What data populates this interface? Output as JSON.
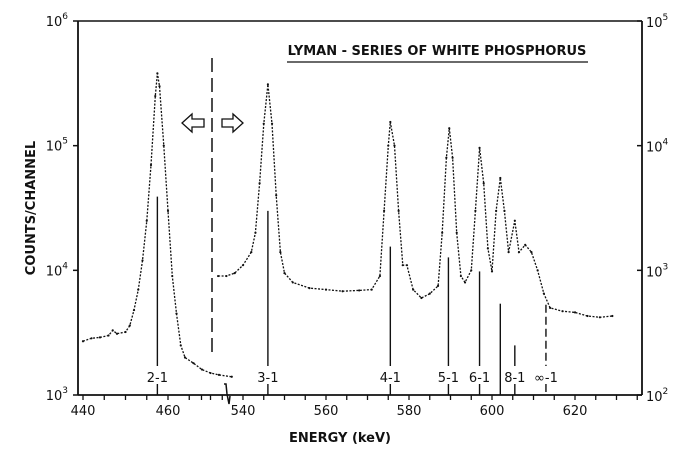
{
  "chart_data": {
    "type": "line",
    "title": "LYMAN - SERIES OF WHITE PHOSPHORUS",
    "xlabel": "ENERGY (keV)",
    "ylabel": "COUNTS/CHANNEL",
    "y_scale": "log",
    "ylim_left": [
      1000,
      1000000
    ],
    "ylim_right": [
      100,
      100000
    ],
    "y_ticks_left": [
      {
        "base": "10",
        "exp": "3"
      },
      {
        "base": "10",
        "exp": "4"
      },
      {
        "base": "10",
        "exp": "5"
      },
      {
        "base": "10",
        "exp": "6"
      }
    ],
    "y_ticks_right": [
      {
        "base": "10",
        "exp": "2"
      },
      {
        "base": "10",
        "exp": "3"
      },
      {
        "base": "10",
        "exp": "4"
      },
      {
        "base": "10",
        "exp": "5"
      }
    ],
    "x_axis_broken": true,
    "x_segments": [
      {
        "range": [
          438,
          476
        ],
        "tick_labels": [
          "440",
          "460"
        ]
      },
      {
        "range": [
          530,
          638
        ],
        "tick_labels": [
          "540",
          "560",
          "580",
          "600",
          "620"
        ]
      }
    ],
    "grid": false,
    "color": "#111111",
    "series": [
      {
        "segment": 0,
        "points": [
          [
            440,
            2700
          ],
          [
            442,
            2850
          ],
          [
            444,
            2900
          ],
          [
            446,
            3000
          ],
          [
            447,
            3300
          ],
          [
            448,
            3100
          ],
          [
            450,
            3200
          ],
          [
            451,
            3600
          ],
          [
            452,
            4800
          ],
          [
            453,
            7000
          ],
          [
            454,
            12000
          ],
          [
            455,
            25000
          ],
          [
            456,
            70000
          ],
          [
            457,
            250000
          ],
          [
            457.5,
            380000
          ],
          [
            458,
            300000
          ],
          [
            459,
            100000
          ],
          [
            460,
            30000
          ],
          [
            461,
            9000
          ],
          [
            462,
            4500
          ],
          [
            463,
            2500
          ],
          [
            464,
            2000
          ],
          [
            466,
            1800
          ],
          [
            468,
            1600
          ],
          [
            470,
            1500
          ],
          [
            472,
            1450
          ],
          [
            475,
            1400
          ]
        ]
      },
      {
        "segment": 1,
        "points": [
          [
            534,
            9000
          ],
          [
            536,
            9000
          ],
          [
            538,
            9500
          ],
          [
            540,
            11000
          ],
          [
            542,
            14000
          ],
          [
            543,
            20000
          ],
          [
            544,
            50000
          ],
          [
            545,
            150000
          ],
          [
            546,
            310000
          ],
          [
            547,
            150000
          ],
          [
            548,
            40000
          ],
          [
            549,
            14000
          ],
          [
            550,
            9500
          ],
          [
            552,
            8000
          ],
          [
            556,
            7200
          ],
          [
            560,
            7000
          ],
          [
            564,
            6800
          ],
          [
            568,
            6900
          ],
          [
            571,
            7000
          ],
          [
            573,
            9000
          ],
          [
            574,
            30000
          ],
          [
            575,
            100000
          ],
          [
            575.5,
            155000
          ],
          [
            576.5,
            100000
          ],
          [
            577.5,
            30000
          ],
          [
            578.5,
            11000
          ],
          [
            579.5,
            11000
          ],
          [
            581,
            7000
          ],
          [
            583,
            6000
          ],
          [
            585,
            6500
          ],
          [
            587,
            7500
          ],
          [
            588,
            20000
          ],
          [
            589,
            80000
          ],
          [
            589.7,
            138000
          ],
          [
            590.5,
            80000
          ],
          [
            591.5,
            20000
          ],
          [
            592.5,
            9000
          ],
          [
            593.5,
            8000
          ],
          [
            595,
            10000
          ],
          [
            596,
            30000
          ],
          [
            597,
            96000
          ],
          [
            598,
            50000
          ],
          [
            599,
            15000
          ],
          [
            600,
            9800
          ],
          [
            601,
            30000
          ],
          [
            602,
            55000
          ],
          [
            603,
            30000
          ],
          [
            604,
            14000
          ],
          [
            605.5,
            25000
          ],
          [
            606.5,
            14000
          ],
          [
            608,
            16000
          ],
          [
            609.5,
            14000
          ],
          [
            611,
            10000
          ],
          [
            612.5,
            6500
          ],
          [
            614,
            5000
          ],
          [
            617,
            4700
          ],
          [
            620,
            4600
          ],
          [
            623,
            4300
          ],
          [
            626,
            4200
          ],
          [
            629,
            4300
          ]
        ]
      }
    ],
    "transitions": [
      {
        "label": "2-1",
        "segment": 0,
        "energy": 457.5,
        "height": 39000,
        "dashed": false
      },
      {
        "label": "3-1",
        "segment": 1,
        "energy": 546,
        "height": 30000,
        "dashed": false
      },
      {
        "label": "4-1",
        "segment": 1,
        "energy": 575.5,
        "height": 15500,
        "dashed": false
      },
      {
        "label": "5-1",
        "segment": 1,
        "energy": 589.5,
        "height": 12700,
        "dashed": false
      },
      {
        "label": "6-1",
        "segment": 1,
        "energy": 597,
        "height": 9800,
        "dashed": false
      },
      {
        "label": "",
        "segment": 1,
        "energy": 602,
        "height": 5400,
        "dashed": false
      },
      {
        "label": "8-1",
        "segment": 1,
        "energy": 605.5,
        "height": 2500,
        "dashed": false
      },
      {
        "label": "∞-1",
        "segment": 1,
        "energy": 613,
        "height": 5300,
        "dashed": true
      }
    ],
    "annotations": [
      "left-arrow",
      "right-arrow",
      "dashed-divider"
    ]
  }
}
